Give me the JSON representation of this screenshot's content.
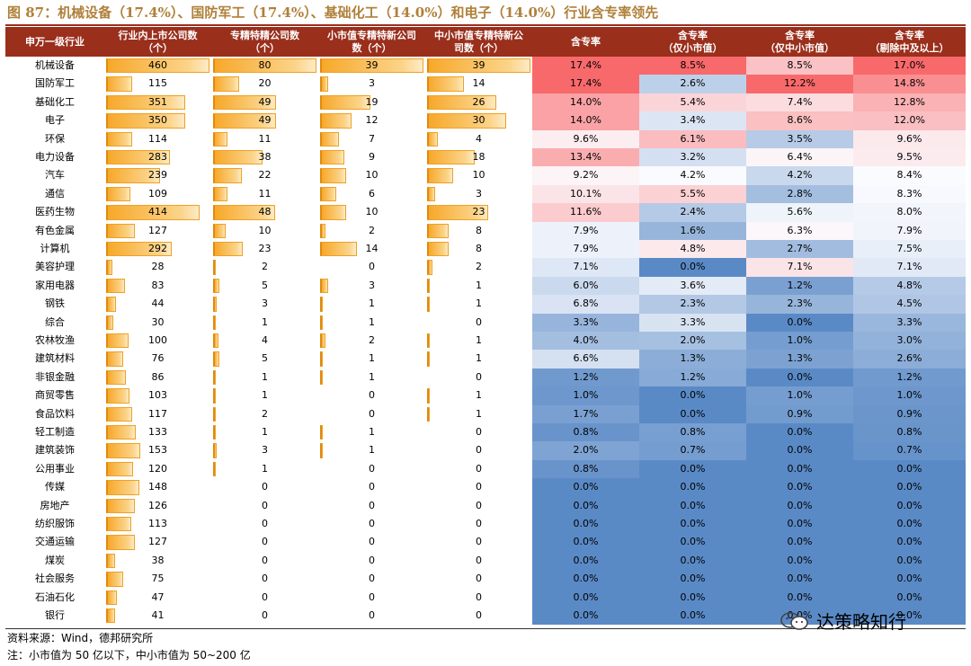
{
  "figure": {
    "title": "图 87：机械设备（17.4%）、国防军工（17.4%）、基础化工（14.0%）和电子（14.0%）行业含专率领先",
    "source": "资料来源：Wind，德邦研究所",
    "note": "注：小市值为 50 亿以下，中小市值为 50~200 亿",
    "watermark": "达策略知行",
    "logo_icon": "wechat-icon"
  },
  "colors": {
    "header_bg": "#9a2f1c",
    "title_color": "#b0803a",
    "bar_color": "#f7a82a",
    "heat_high": "#f8696b",
    "heat_mid": "#fcfcff",
    "heat_low": "#5a8ac6"
  },
  "chart_data": {
    "type": "table",
    "title": "机械设备（17.4%）、国防军工（17.4%）、基础化工（14.0%）和电子（14.0%）行业含专率领先",
    "columns": [
      [
        "申万一级行业"
      ],
      [
        "行业内上市公司数",
        "（个）"
      ],
      [
        "专精特精公司数",
        "（个）"
      ],
      [
        "小市值专精特新公司",
        "数（个）"
      ],
      [
        "中小市值专精特新公",
        "司数（个）"
      ],
      [
        "含专率"
      ],
      [
        "含专率",
        "（仅小市值）"
      ],
      [
        "含专率",
        "（仅中小市值）"
      ],
      [
        "含专率",
        "（剔除中及以上）"
      ]
    ],
    "bar_column_max": [
      460,
      80,
      39,
      39
    ],
    "heat_column_range": [
      [
        0,
        17.4
      ],
      [
        0,
        8.5
      ],
      [
        0,
        12.2
      ],
      [
        0,
        17.0
      ]
    ],
    "rows": [
      {
        "industry": "机械设备",
        "counts": [
          460,
          80,
          39,
          39
        ],
        "rates": [
          17.4,
          8.5,
          8.5,
          17.0
        ],
        "rate_labels": [
          "17.4%",
          "8.5%",
          "8.5%",
          "17.0%"
        ]
      },
      {
        "industry": "国防军工",
        "counts": [
          115,
          20,
          3,
          14
        ],
        "rates": [
          17.4,
          2.6,
          12.2,
          14.8
        ],
        "rate_labels": [
          "17.4%",
          "2.6%",
          "12.2%",
          "14.8%"
        ]
      },
      {
        "industry": "基础化工",
        "counts": [
          351,
          49,
          19,
          26
        ],
        "rates": [
          14.0,
          5.4,
          7.4,
          12.8
        ],
        "rate_labels": [
          "14.0%",
          "5.4%",
          "7.4%",
          "12.8%"
        ]
      },
      {
        "industry": "电子",
        "counts": [
          350,
          49,
          12,
          30
        ],
        "rates": [
          14.0,
          3.4,
          8.6,
          12.0
        ],
        "rate_labels": [
          "14.0%",
          "3.4%",
          "8.6%",
          "12.0%"
        ]
      },
      {
        "industry": "环保",
        "counts": [
          114,
          11,
          7,
          4
        ],
        "rates": [
          9.6,
          6.1,
          3.5,
          9.6
        ],
        "rate_labels": [
          "9.6%",
          "6.1%",
          "3.5%",
          "9.6%"
        ]
      },
      {
        "industry": "电力设备",
        "counts": [
          283,
          38,
          9,
          18
        ],
        "rates": [
          13.4,
          3.2,
          6.4,
          9.5
        ],
        "rate_labels": [
          "13.4%",
          "3.2%",
          "6.4%",
          "9.5%"
        ]
      },
      {
        "industry": "汽车",
        "counts": [
          239,
          22,
          10,
          10
        ],
        "rates": [
          9.2,
          4.2,
          4.2,
          8.4
        ],
        "rate_labels": [
          "9.2%",
          "4.2%",
          "4.2%",
          "8.4%"
        ]
      },
      {
        "industry": "通信",
        "counts": [
          109,
          11,
          6,
          3
        ],
        "rates": [
          10.1,
          5.5,
          2.8,
          8.3
        ],
        "rate_labels": [
          "10.1%",
          "5.5%",
          "2.8%",
          "8.3%"
        ]
      },
      {
        "industry": "医药生物",
        "counts": [
          414,
          48,
          10,
          23
        ],
        "rates": [
          11.6,
          2.4,
          5.6,
          8.0
        ],
        "rate_labels": [
          "11.6%",
          "2.4%",
          "5.6%",
          "8.0%"
        ]
      },
      {
        "industry": "有色金属",
        "counts": [
          127,
          10,
          2,
          8
        ],
        "rates": [
          7.9,
          1.6,
          6.3,
          7.9
        ],
        "rate_labels": [
          "7.9%",
          "1.6%",
          "6.3%",
          "7.9%"
        ]
      },
      {
        "industry": "计算机",
        "counts": [
          292,
          23,
          14,
          8
        ],
        "rates": [
          7.9,
          4.8,
          2.7,
          7.5
        ],
        "rate_labels": [
          "7.9%",
          "4.8%",
          "2.7%",
          "7.5%"
        ]
      },
      {
        "industry": "美容护理",
        "counts": [
          28,
          2,
          0,
          2
        ],
        "rates": [
          7.1,
          0.0,
          7.1,
          7.1
        ],
        "rate_labels": [
          "7.1%",
          "0.0%",
          "7.1%",
          "7.1%"
        ]
      },
      {
        "industry": "家用电器",
        "counts": [
          83,
          5,
          3,
          1
        ],
        "rates": [
          6.0,
          3.6,
          1.2,
          4.8
        ],
        "rate_labels": [
          "6.0%",
          "3.6%",
          "1.2%",
          "4.8%"
        ]
      },
      {
        "industry": "钢铁",
        "counts": [
          44,
          3,
          1,
          1
        ],
        "rates": [
          6.8,
          2.3,
          2.3,
          4.5
        ],
        "rate_labels": [
          "6.8%",
          "2.3%",
          "2.3%",
          "4.5%"
        ]
      },
      {
        "industry": "综合",
        "counts": [
          30,
          1,
          1,
          0
        ],
        "rates": [
          3.3,
          3.3,
          0.0,
          3.3
        ],
        "rate_labels": [
          "3.3%",
          "3.3%",
          "0.0%",
          "3.3%"
        ]
      },
      {
        "industry": "农林牧渔",
        "counts": [
          100,
          4,
          2,
          1
        ],
        "rates": [
          4.0,
          2.0,
          1.0,
          3.0
        ],
        "rate_labels": [
          "4.0%",
          "2.0%",
          "1.0%",
          "3.0%"
        ]
      },
      {
        "industry": "建筑材料",
        "counts": [
          76,
          5,
          1,
          1
        ],
        "rates": [
          6.6,
          1.3,
          1.3,
          2.6
        ],
        "rate_labels": [
          "6.6%",
          "1.3%",
          "1.3%",
          "2.6%"
        ]
      },
      {
        "industry": "非银金融",
        "counts": [
          86,
          1,
          1,
          0
        ],
        "rates": [
          1.2,
          1.2,
          0.0,
          1.2
        ],
        "rate_labels": [
          "1.2%",
          "1.2%",
          "0.0%",
          "1.2%"
        ]
      },
      {
        "industry": "商贸零售",
        "counts": [
          103,
          1,
          0,
          1
        ],
        "rates": [
          1.0,
          0.0,
          1.0,
          1.0
        ],
        "rate_labels": [
          "1.0%",
          "0.0%",
          "1.0%",
          "1.0%"
        ]
      },
      {
        "industry": "食品饮料",
        "counts": [
          117,
          2,
          0,
          1
        ],
        "rates": [
          1.7,
          0.0,
          0.9,
          0.9
        ],
        "rate_labels": [
          "1.7%",
          "0.0%",
          "0.9%",
          "0.9%"
        ]
      },
      {
        "industry": "轻工制造",
        "counts": [
          133,
          1,
          1,
          0
        ],
        "rates": [
          0.8,
          0.8,
          0.0,
          0.8
        ],
        "rate_labels": [
          "0.8%",
          "0.8%",
          "0.0%",
          "0.8%"
        ]
      },
      {
        "industry": "建筑装饰",
        "counts": [
          153,
          3,
          1,
          0
        ],
        "rates": [
          2.0,
          0.7,
          0.0,
          0.7
        ],
        "rate_labels": [
          "2.0%",
          "0.7%",
          "0.0%",
          "0.7%"
        ]
      },
      {
        "industry": "公用事业",
        "counts": [
          120,
          1,
          0,
          0
        ],
        "rates": [
          0.8,
          0.0,
          0.0,
          0.0
        ],
        "rate_labels": [
          "0.8%",
          "0.0%",
          "0.0%",
          "0.0%"
        ]
      },
      {
        "industry": "传媒",
        "counts": [
          148,
          0,
          0,
          0
        ],
        "rates": [
          0.0,
          0.0,
          0.0,
          0.0
        ],
        "rate_labels": [
          "0.0%",
          "0.0%",
          "0.0%",
          "0.0%"
        ]
      },
      {
        "industry": "房地产",
        "counts": [
          126,
          0,
          0,
          0
        ],
        "rates": [
          0.0,
          0.0,
          0.0,
          0.0
        ],
        "rate_labels": [
          "0.0%",
          "0.0%",
          "0.0%",
          "0.0%"
        ]
      },
      {
        "industry": "纺织服饰",
        "counts": [
          113,
          0,
          0,
          0
        ],
        "rates": [
          0.0,
          0.0,
          0.0,
          0.0
        ],
        "rate_labels": [
          "0.0%",
          "0.0%",
          "0.0%",
          "0.0%"
        ]
      },
      {
        "industry": "交通运输",
        "counts": [
          127,
          0,
          0,
          0
        ],
        "rates": [
          0.0,
          0.0,
          0.0,
          0.0
        ],
        "rate_labels": [
          "0.0%",
          "0.0%",
          "0.0%",
          "0.0%"
        ]
      },
      {
        "industry": "煤炭",
        "counts": [
          38,
          0,
          0,
          0
        ],
        "rates": [
          0.0,
          0.0,
          0.0,
          0.0
        ],
        "rate_labels": [
          "0.0%",
          "0.0%",
          "0.0%",
          "0.0%"
        ]
      },
      {
        "industry": "社会服务",
        "counts": [
          75,
          0,
          0,
          0
        ],
        "rates": [
          0.0,
          0.0,
          0.0,
          0.0
        ],
        "rate_labels": [
          "0.0%",
          "0.0%",
          "0.0%",
          "0.0%"
        ]
      },
      {
        "industry": "石油石化",
        "counts": [
          47,
          0,
          0,
          0
        ],
        "rates": [
          0.0,
          0.0,
          0.0,
          0.0
        ],
        "rate_labels": [
          "0.0%",
          "0.0%",
          "0.0%",
          "0.0%"
        ]
      },
      {
        "industry": "银行",
        "counts": [
          41,
          0,
          0,
          0
        ],
        "rates": [
          0.0,
          0.0,
          0.0,
          0.0
        ],
        "rate_labels": [
          "0.0%",
          "0.0%",
          "0.0%",
          "0.0%"
        ]
      }
    ]
  }
}
